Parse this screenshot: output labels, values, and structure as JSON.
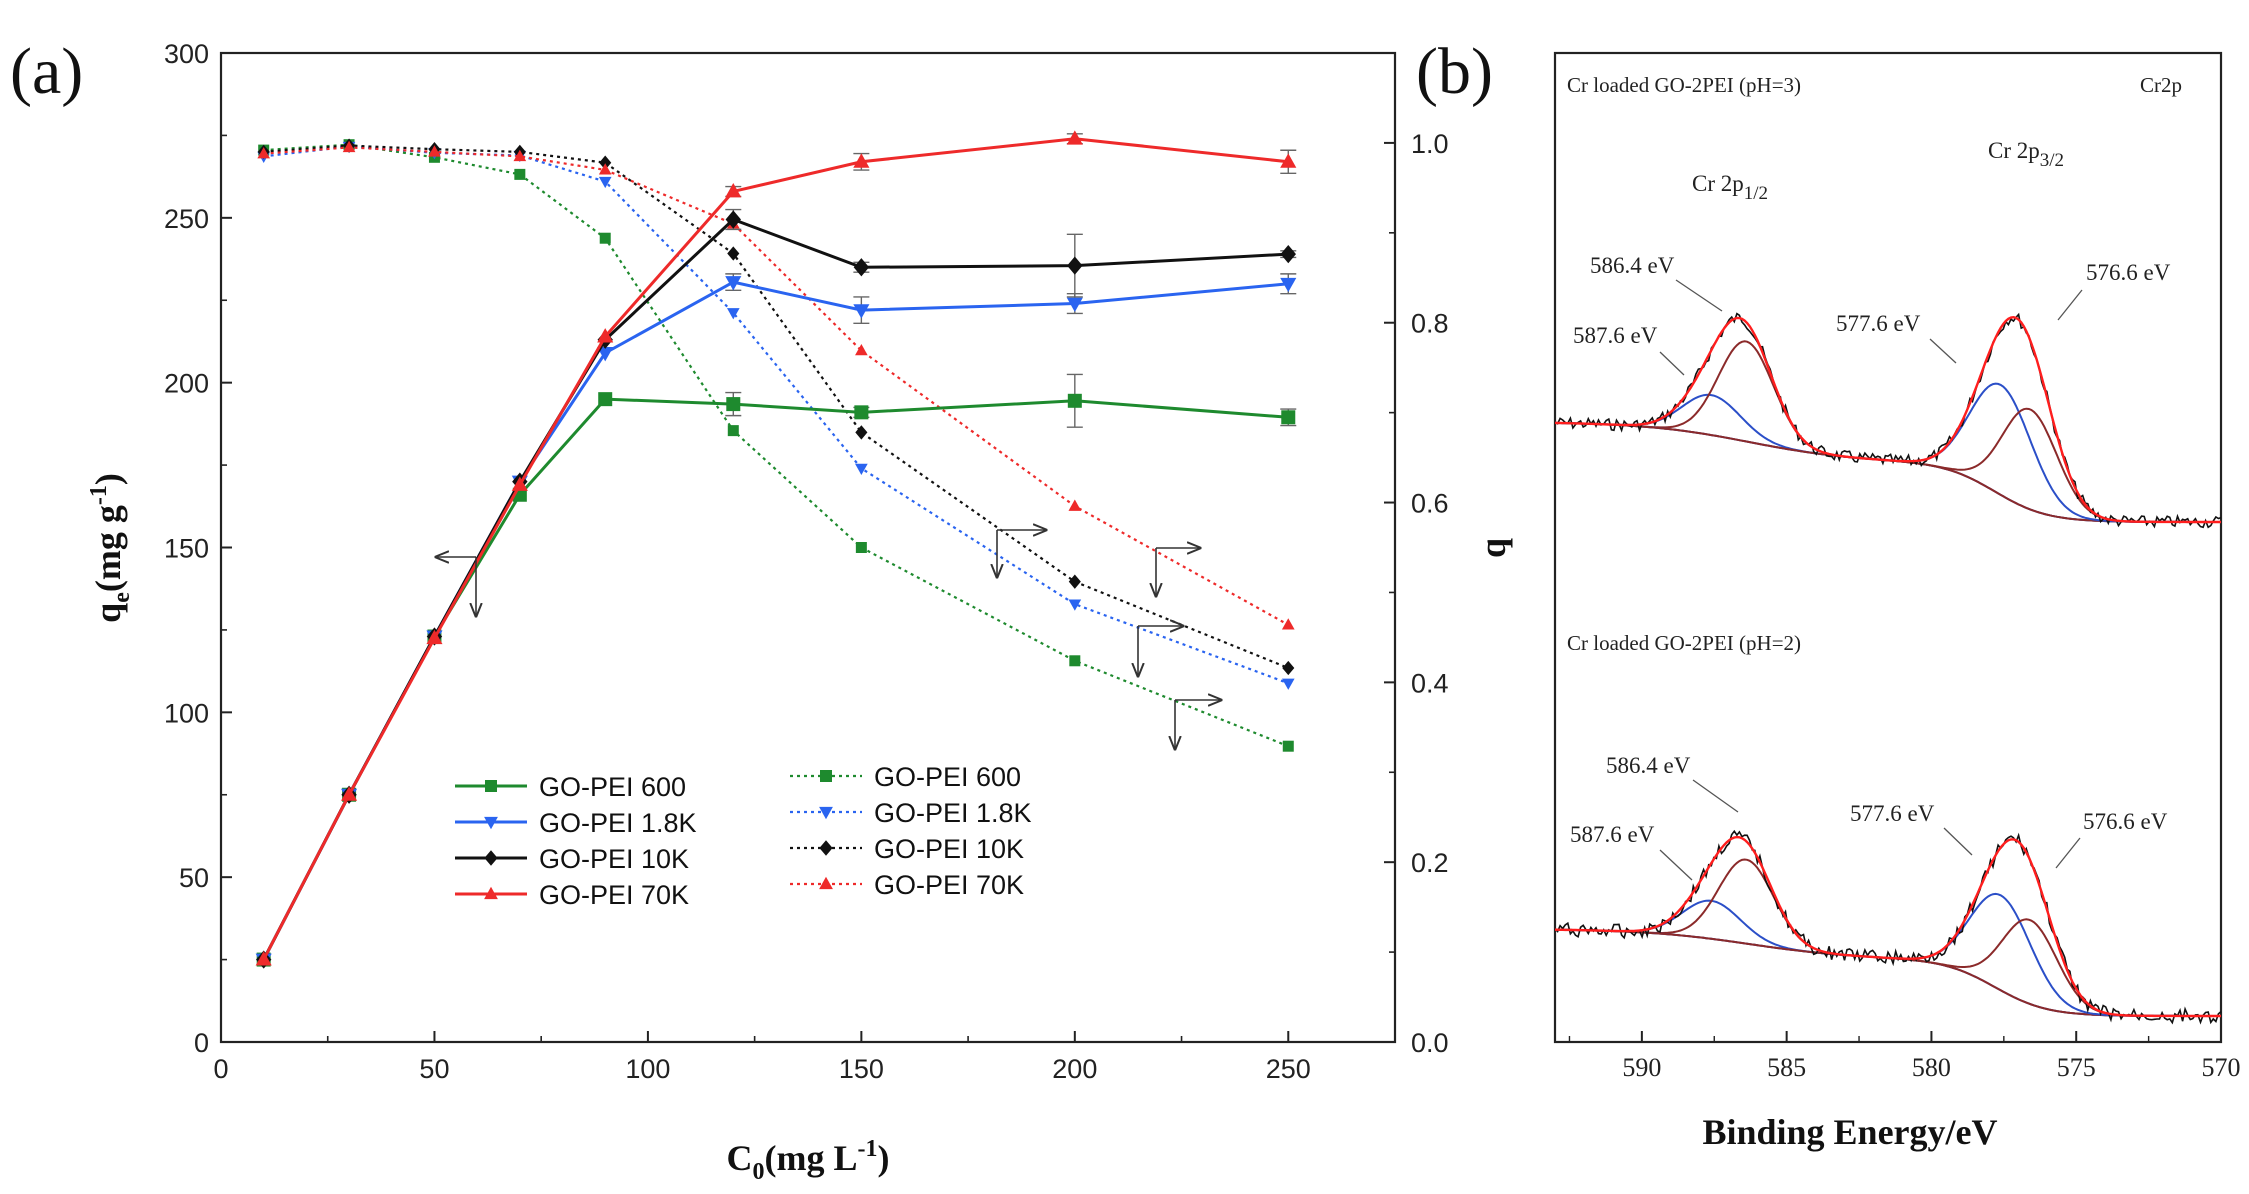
{
  "colors": {
    "green": "#1e8a2e",
    "blue": "#2a64f0",
    "black": "#111111",
    "red": "#ee2a2a",
    "xps_fit_red": "#ff1e1e",
    "xps_blue": "#2b4fc8",
    "xps_brown": "#8b2a2a"
  },
  "panels": {
    "a_label": "(a)",
    "b_label": "(b)"
  },
  "chart_data": [
    {
      "type": "line",
      "panel": "(a)",
      "xlabel_main": "C",
      "xlabel_sub": "0",
      "xlabel_tail": "(mg L",
      "xlabel_sup": "-1",
      "xlabel_end": ")",
      "ylabel_main": "q",
      "ylabel_sub": "e",
      "ylabel_tail": "(mg g",
      "ylabel_sup": "-1",
      "ylabel_end": ")",
      "y2label": "q",
      "xlim": [
        0,
        275
      ],
      "ylim": [
        0,
        300
      ],
      "y2lim": [
        0,
        1.1
      ],
      "xticks": [
        0,
        50,
        100,
        150,
        200,
        250
      ],
      "yticks": [
        0,
        50,
        100,
        150,
        200,
        250,
        300
      ],
      "y2ticks": [
        "0.0",
        "0.2",
        "0.4",
        "0.6",
        "0.8",
        "1.0"
      ],
      "series": [
        {
          "name": "GO-PEI 600",
          "axis": "left",
          "style": "solid",
          "marker": "square",
          "color": "green",
          "x": [
            10,
            30,
            50,
            70,
            90,
            120,
            150,
            200,
            250
          ],
          "y": [
            25,
            75,
            123,
            166,
            195,
            193.5,
            191,
            194.5,
            189.5
          ],
          "err": [
            0,
            0,
            0,
            0,
            0,
            3.5,
            1.5,
            8,
            2.5
          ]
        },
        {
          "name": "GO-PEI 1.8K",
          "axis": "left",
          "style": "solid",
          "marker": "tri-down",
          "color": "blue",
          "x": [
            10,
            30,
            50,
            70,
            90,
            120,
            150,
            200,
            250
          ],
          "y": [
            25,
            75,
            123,
            170,
            209,
            230.5,
            222,
            224,
            230
          ],
          "err": [
            0,
            0,
            0,
            0,
            0,
            2.5,
            4,
            3,
            3
          ]
        },
        {
          "name": "GO-PEI 10K",
          "axis": "left",
          "style": "solid",
          "marker": "diamond",
          "color": "black",
          "x": [
            10,
            30,
            50,
            70,
            90,
            120,
            150,
            200,
            250
          ],
          "y": [
            25,
            75,
            123,
            170,
            213,
            249.5,
            235,
            235.5,
            239
          ],
          "err": [
            0,
            0,
            0,
            0,
            0,
            3,
            1.5,
            9.5,
            1
          ]
        },
        {
          "name": "GO-PEI 70K",
          "axis": "left",
          "style": "solid",
          "marker": "tri-up",
          "color": "red",
          "x": [
            10,
            30,
            50,
            70,
            90,
            120,
            150,
            200,
            250
          ],
          "y": [
            25,
            75,
            122.5,
            169,
            214,
            258,
            267,
            274,
            267
          ],
          "err": [
            0,
            0,
            0,
            0,
            0,
            1.5,
            2.5,
            1.5,
            3.5
          ]
        },
        {
          "name": "GO-PEI 600",
          "axis": "right",
          "style": "dotted",
          "marker": "square",
          "color": "green",
          "x": [
            10,
            30,
            50,
            70,
            90,
            120,
            150,
            200,
            250
          ],
          "y": [
            0.992,
            0.998,
            0.984,
            0.965,
            0.894,
            0.68,
            0.55,
            0.424,
            0.329
          ]
        },
        {
          "name": "GO-PEI 1.8K",
          "axis": "right",
          "style": "dotted",
          "marker": "tri-down",
          "color": "blue",
          "x": [
            10,
            30,
            50,
            70,
            90,
            120,
            150,
            200,
            250
          ],
          "y": [
            0.985,
            0.996,
            0.989,
            0.986,
            0.957,
            0.811,
            0.638,
            0.487,
            0.399
          ]
        },
        {
          "name": "GO-PEI 10K",
          "axis": "right",
          "style": "dotted",
          "marker": "diamond",
          "color": "black",
          "x": [
            10,
            30,
            50,
            70,
            90,
            120,
            150,
            200,
            250
          ],
          "y": [
            0.99,
            0.997,
            0.993,
            0.99,
            0.978,
            0.877,
            0.678,
            0.512,
            0.416
          ]
        },
        {
          "name": "GO-PEI 70K",
          "axis": "right",
          "style": "dotted",
          "marker": "tri-up",
          "color": "red",
          "x": [
            10,
            30,
            50,
            70,
            90,
            120,
            150,
            200,
            250
          ],
          "y": [
            0.988,
            0.995,
            0.99,
            0.985,
            0.97,
            0.91,
            0.769,
            0.596,
            0.464
          ]
        }
      ],
      "legend": {
        "solid": [
          "GO-PEI 600",
          "GO-PEI 1.8K",
          "GO-PEI 10K",
          "GO-PEI 70K"
        ],
        "dotted": [
          "GO-PEI 600",
          "GO-PEI 1.8K",
          "GO-PEI 10K",
          "GO-PEI 70K"
        ],
        "placement": "lower-center"
      }
    },
    {
      "type": "line",
      "panel": "(b)",
      "xlabel": "Binding Energy/eV",
      "xlim": [
        593,
        570
      ],
      "xticks": [
        590,
        585,
        580,
        575,
        570
      ],
      "corner_label": "Cr2p",
      "spectra": [
        {
          "title": "Cr loaded GO-2PEI (pH=3)",
          "peaks": [
            {
              "label": "587.6 eV",
              "energy": 587.6
            },
            {
              "label": "586.4 eV",
              "energy": 586.4
            },
            {
              "label": "577.6 eV",
              "energy": 577.6
            },
            {
              "label": "576.6 eV",
              "energy": 576.6
            }
          ],
          "assignments": [
            {
              "main": "Cr 2p",
              "sub": "1/2"
            },
            {
              "main": "Cr 2p",
              "sub": "3/2"
            }
          ]
        },
        {
          "title": "Cr loaded GO-2PEI (pH=2)",
          "peaks": [
            {
              "label": "587.6 eV",
              "energy": 587.6
            },
            {
              "label": "586.4 eV",
              "energy": 586.4
            },
            {
              "label": "577.6 eV",
              "energy": 577.6
            },
            {
              "label": "576.6 eV",
              "energy": 576.6
            }
          ]
        }
      ]
    }
  ]
}
